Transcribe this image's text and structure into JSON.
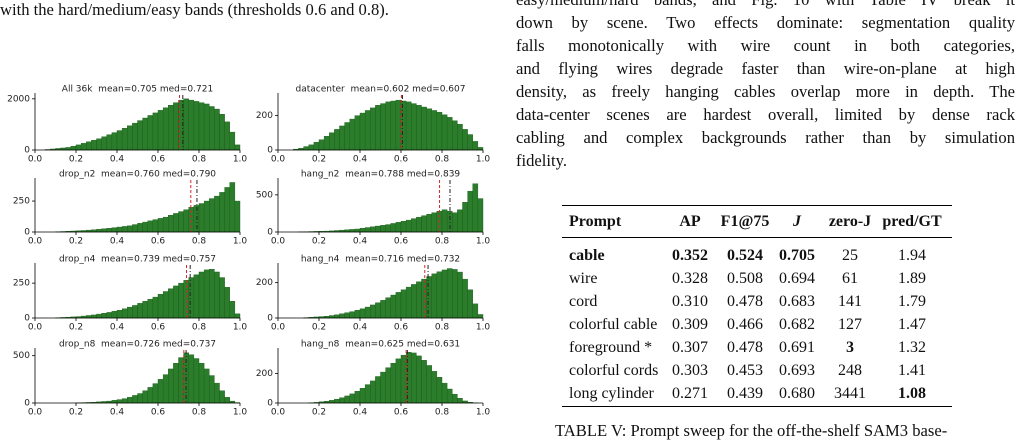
{
  "text": {
    "left_line": "with the hard/medium/easy bands (thresholds 0.6 and 0.8).",
    "right_paragraph": [
      "easy/medium/hard bands, and Fig. 10 with Table IV break it",
      "down by scene. Two effects dominate: segmentation quality",
      "falls monotonically with wire count in both categories,",
      "and flying wires degrade faster than wire-on-plane at high",
      "density, as freely hanging cables overlap more in depth. The",
      "data-center scenes are hardest overall, limited by dense rack",
      "cabling and complex backgrounds rather than by simulation",
      "fidelity."
    ]
  },
  "chart_data": [
    {
      "type": "histogram",
      "title": "All 36k  mean=0.705 med=0.721",
      "color": "#2b7d2b",
      "mean": 0.705,
      "median": 0.721,
      "xlim": [
        0,
        1
      ],
      "ylim": [
        0,
        2150
      ],
      "yticks": [
        0,
        2000
      ],
      "xticks": [
        {
          "value": 0,
          "label": "0.0"
        },
        0.2,
        0.4,
        0.6,
        0.8,
        {
          "value": 1,
          "label": "1.0"
        }
      ],
      "bins": [
        0,
        0.025,
        0.05,
        0.075,
        0.1,
        0.125,
        0.15,
        0.175,
        0.2,
        0.225,
        0.25,
        0.275,
        0.3,
        0.325,
        0.35,
        0.375,
        0.4,
        0.425,
        0.45,
        0.475,
        0.5,
        0.525,
        0.55,
        0.575,
        0.6,
        0.625,
        0.65,
        0.675,
        0.7,
        0.725,
        0.75,
        0.775,
        0.8,
        0.825,
        0.85,
        0.875,
        0.9,
        0.925,
        0.95,
        0.975,
        1
      ],
      "counts": [
        0,
        0,
        20,
        40,
        60,
        80,
        100,
        150,
        200,
        260,
        320,
        380,
        440,
        520,
        600,
        680,
        760,
        850,
        950,
        1050,
        1150,
        1250,
        1350,
        1450,
        1550,
        1650,
        1750,
        1850,
        1950,
        2000,
        1950,
        1900,
        1850,
        1800,
        1700,
        1600,
        1400,
        1100,
        700,
        200
      ]
    },
    {
      "type": "histogram",
      "title": "datacenter  mean=0.602 med=0.607",
      "color": "#2b7d2b",
      "mean": 0.602,
      "median": 0.607,
      "xlim": [
        0,
        1
      ],
      "ylim": [
        0,
        320
      ],
      "yticks": [
        0,
        200
      ],
      "xticks": [
        {
          "value": 0,
          "label": "0.0"
        },
        0.2,
        0.4,
        0.6,
        0.8,
        {
          "value": 1,
          "label": "1.0"
        }
      ],
      "bins": [
        0,
        0.025,
        0.05,
        0.075,
        0.1,
        0.125,
        0.15,
        0.175,
        0.2,
        0.225,
        0.25,
        0.275,
        0.3,
        0.325,
        0.35,
        0.375,
        0.4,
        0.425,
        0.45,
        0.475,
        0.5,
        0.525,
        0.55,
        0.575,
        0.6,
        0.625,
        0.65,
        0.675,
        0.7,
        0.725,
        0.75,
        0.775,
        0.8,
        0.825,
        0.85,
        0.875,
        0.9,
        0.925,
        0.95,
        0.975,
        1
      ],
      "counts": [
        0,
        0,
        0,
        5,
        10,
        20,
        30,
        45,
        60,
        80,
        100,
        120,
        140,
        160,
        180,
        200,
        215,
        230,
        245,
        260,
        270,
        280,
        285,
        290,
        285,
        280,
        270,
        260,
        250,
        240,
        230,
        220,
        205,
        190,
        170,
        150,
        120,
        90,
        50,
        15
      ]
    },
    {
      "type": "histogram",
      "title": "drop_n2  mean=0.760 med=0.790",
      "color": "#2b7d2b",
      "mean": 0.76,
      "median": 0.79,
      "xlim": [
        0,
        1
      ],
      "ylim": [
        0,
        420
      ],
      "yticks": [
        0,
        250
      ],
      "xticks": [
        {
          "value": 0,
          "label": "0.0"
        },
        0.2,
        0.4,
        0.6,
        0.8,
        {
          "value": 1,
          "label": "1.0"
        }
      ],
      "bins": [
        0,
        0.025,
        0.05,
        0.075,
        0.1,
        0.125,
        0.15,
        0.175,
        0.2,
        0.225,
        0.25,
        0.275,
        0.3,
        0.325,
        0.35,
        0.375,
        0.4,
        0.425,
        0.45,
        0.475,
        0.5,
        0.525,
        0.55,
        0.575,
        0.6,
        0.625,
        0.65,
        0.675,
        0.7,
        0.725,
        0.75,
        0.775,
        0.8,
        0.825,
        0.85,
        0.875,
        0.9,
        0.925,
        0.95,
        0.975,
        1
      ],
      "counts": [
        0,
        0,
        0,
        0,
        2,
        4,
        6,
        8,
        10,
        12,
        15,
        18,
        22,
        26,
        30,
        35,
        40,
        45,
        50,
        60,
        70,
        80,
        90,
        100,
        110,
        120,
        135,
        150,
        165,
        180,
        200,
        215,
        230,
        250,
        270,
        290,
        320,
        360,
        400,
        250
      ]
    },
    {
      "type": "histogram",
      "title": "hang_n2  mean=0.788 med=0.839",
      "color": "#2b7d2b",
      "mean": 0.788,
      "median": 0.839,
      "xlim": [
        0,
        1
      ],
      "ylim": [
        0,
        700
      ],
      "yticks": [
        0,
        500
      ],
      "xticks": [
        {
          "value": 0,
          "label": "0.0"
        },
        0.2,
        0.4,
        0.6,
        0.8,
        {
          "value": 1,
          "label": "1.0"
        }
      ],
      "bins": [
        0,
        0.025,
        0.05,
        0.075,
        0.1,
        0.125,
        0.15,
        0.175,
        0.2,
        0.225,
        0.25,
        0.275,
        0.3,
        0.325,
        0.35,
        0.375,
        0.4,
        0.425,
        0.45,
        0.475,
        0.5,
        0.525,
        0.55,
        0.575,
        0.6,
        0.625,
        0.65,
        0.675,
        0.7,
        0.725,
        0.75,
        0.775,
        0.8,
        0.825,
        0.85,
        0.875,
        0.9,
        0.925,
        0.95,
        0.975,
        1
      ],
      "counts": [
        0,
        0,
        0,
        0,
        2,
        4,
        6,
        8,
        10,
        12,
        15,
        20,
        25,
        30,
        35,
        40,
        50,
        60,
        70,
        80,
        90,
        100,
        115,
        130,
        145,
        160,
        180,
        200,
        220,
        240,
        260,
        280,
        300,
        280,
        260,
        300,
        400,
        550,
        650,
        450
      ]
    },
    {
      "type": "histogram",
      "title": "drop_n4  mean=0.739 med=0.757",
      "color": "#2b7d2b",
      "mean": 0.739,
      "median": 0.757,
      "xlim": [
        0,
        1
      ],
      "ylim": [
        0,
        380
      ],
      "yticks": [
        0,
        250
      ],
      "xticks": [
        {
          "value": 0,
          "label": "0.0"
        },
        0.2,
        0.4,
        0.6,
        0.8,
        {
          "value": 1,
          "label": "1.0"
        }
      ],
      "bins": [
        0,
        0.025,
        0.05,
        0.075,
        0.1,
        0.125,
        0.15,
        0.175,
        0.2,
        0.225,
        0.25,
        0.275,
        0.3,
        0.325,
        0.35,
        0.375,
        0.4,
        0.425,
        0.45,
        0.475,
        0.5,
        0.525,
        0.55,
        0.575,
        0.6,
        0.625,
        0.65,
        0.675,
        0.7,
        0.725,
        0.75,
        0.775,
        0.8,
        0.825,
        0.85,
        0.875,
        0.9,
        0.925,
        0.95,
        0.975,
        1
      ],
      "counts": [
        0,
        0,
        0,
        0,
        2,
        4,
        6,
        8,
        10,
        14,
        18,
        22,
        28,
        34,
        40,
        48,
        56,
        66,
        78,
        90,
        105,
        120,
        135,
        150,
        170,
        190,
        210,
        230,
        250,
        270,
        290,
        310,
        330,
        345,
        350,
        330,
        290,
        220,
        120,
        30
      ]
    },
    {
      "type": "histogram",
      "title": "hang_n4  mean=0.716 med=0.732",
      "color": "#2b7d2b",
      "mean": 0.716,
      "median": 0.732,
      "xlim": [
        0,
        1
      ],
      "ylim": [
        0,
        300
      ],
      "yticks": [
        0,
        200
      ],
      "xticks": [
        {
          "value": 0,
          "label": "0.0"
        },
        0.2,
        0.4,
        0.6,
        0.8,
        {
          "value": 1,
          "label": "1.0"
        }
      ],
      "bins": [
        0,
        0.025,
        0.05,
        0.075,
        0.1,
        0.125,
        0.15,
        0.175,
        0.2,
        0.225,
        0.25,
        0.275,
        0.3,
        0.325,
        0.35,
        0.375,
        0.4,
        0.425,
        0.45,
        0.475,
        0.5,
        0.525,
        0.55,
        0.575,
        0.6,
        0.625,
        0.65,
        0.675,
        0.7,
        0.725,
        0.75,
        0.775,
        0.8,
        0.825,
        0.85,
        0.875,
        0.9,
        0.925,
        0.95,
        0.975,
        1
      ],
      "counts": [
        0,
        0,
        0,
        0,
        0,
        2,
        4,
        6,
        8,
        10,
        14,
        18,
        24,
        30,
        36,
        44,
        52,
        62,
        74,
        86,
        100,
        115,
        130,
        145,
        160,
        175,
        190,
        205,
        220,
        235,
        250,
        262,
        272,
        280,
        275,
        260,
        220,
        160,
        80,
        20
      ]
    },
    {
      "type": "histogram",
      "title": "drop_n8  mean=0.726 med=0.737",
      "color": "#2b7d2b",
      "mean": 0.726,
      "median": 0.737,
      "xlim": [
        0,
        1
      ],
      "ylim": [
        0,
        560
      ],
      "yticks": [
        0,
        500
      ],
      "xticks": [
        {
          "value": 0,
          "label": "0.0"
        },
        0.2,
        0.4,
        0.6,
        0.8,
        {
          "value": 1,
          "label": "1.0"
        }
      ],
      "bins": [
        0,
        0.025,
        0.05,
        0.075,
        0.1,
        0.125,
        0.15,
        0.175,
        0.2,
        0.225,
        0.25,
        0.275,
        0.3,
        0.325,
        0.35,
        0.375,
        0.4,
        0.425,
        0.45,
        0.475,
        0.5,
        0.525,
        0.55,
        0.575,
        0.6,
        0.625,
        0.65,
        0.675,
        0.7,
        0.725,
        0.75,
        0.775,
        0.8,
        0.825,
        0.85,
        0.875,
        0.9,
        0.925,
        0.95,
        0.975,
        1
      ],
      "counts": [
        0,
        0,
        0,
        0,
        0,
        0,
        0,
        0,
        2,
        4,
        6,
        8,
        12,
        16,
        20,
        28,
        36,
        46,
        60,
        80,
        100,
        130,
        165,
        205,
        250,
        300,
        360,
        420,
        480,
        530,
        510,
        470,
        420,
        360,
        290,
        210,
        130,
        60,
        20,
        4
      ]
    },
    {
      "type": "histogram",
      "title": "hang_n8  mean=0.625 med=0.631",
      "color": "#2b7d2b",
      "mean": 0.625,
      "median": 0.631,
      "xlim": [
        0,
        1
      ],
      "ylim": [
        0,
        360
      ],
      "yticks": [
        0,
        200
      ],
      "xticks": [
        {
          "value": 0,
          "label": "0.0"
        },
        0.2,
        0.4,
        0.6,
        0.8,
        {
          "value": 1,
          "label": "1.0"
        }
      ],
      "bins": [
        0,
        0.025,
        0.05,
        0.075,
        0.1,
        0.125,
        0.15,
        0.175,
        0.2,
        0.225,
        0.25,
        0.275,
        0.3,
        0.325,
        0.35,
        0.375,
        0.4,
        0.425,
        0.45,
        0.475,
        0.5,
        0.525,
        0.55,
        0.575,
        0.6,
        0.625,
        0.65,
        0.675,
        0.7,
        0.725,
        0.75,
        0.775,
        0.8,
        0.825,
        0.85,
        0.875,
        0.9,
        0.925,
        0.95,
        0.975,
        1
      ],
      "counts": [
        0,
        0,
        0,
        0,
        0,
        0,
        2,
        4,
        8,
        12,
        18,
        26,
        36,
        48,
        62,
        80,
        100,
        125,
        150,
        180,
        210,
        240,
        270,
        300,
        325,
        345,
        340,
        320,
        290,
        255,
        215,
        175,
        135,
        95,
        60,
        32,
        14,
        5,
        1,
        0
      ]
    }
  ],
  "table": {
    "headers": [
      "Prompt",
      "AP",
      "F1@75",
      "J",
      "zero-J",
      "pred/GT"
    ],
    "italic_headers": [
      3
    ],
    "rows": [
      [
        "cable",
        "0.352",
        "0.524",
        "0.705",
        "25",
        "1.94"
      ],
      [
        "wire",
        "0.328",
        "0.508",
        "0.694",
        "61",
        "1.89"
      ],
      [
        "cord",
        "0.310",
        "0.478",
        "0.683",
        "141",
        "1.79"
      ],
      [
        "colorful cable",
        "0.309",
        "0.466",
        "0.682",
        "127",
        "1.47"
      ],
      [
        "foreground *",
        "0.307",
        "0.478",
        "0.691",
        "3",
        "1.32"
      ],
      [
        "colorful cords",
        "0.303",
        "0.453",
        "0.693",
        "248",
        "1.41"
      ],
      [
        "long cylinder",
        "0.271",
        "0.439",
        "0.680",
        "3441",
        "1.08"
      ]
    ],
    "bold_cells": [
      [
        0,
        0
      ],
      [
        0,
        1
      ],
      [
        0,
        2
      ],
      [
        0,
        3
      ],
      [
        4,
        4
      ],
      [
        6,
        5
      ]
    ]
  },
  "caption": "TABLE V: Prompt sweep for the off-the-shelf SAM3 base-"
}
